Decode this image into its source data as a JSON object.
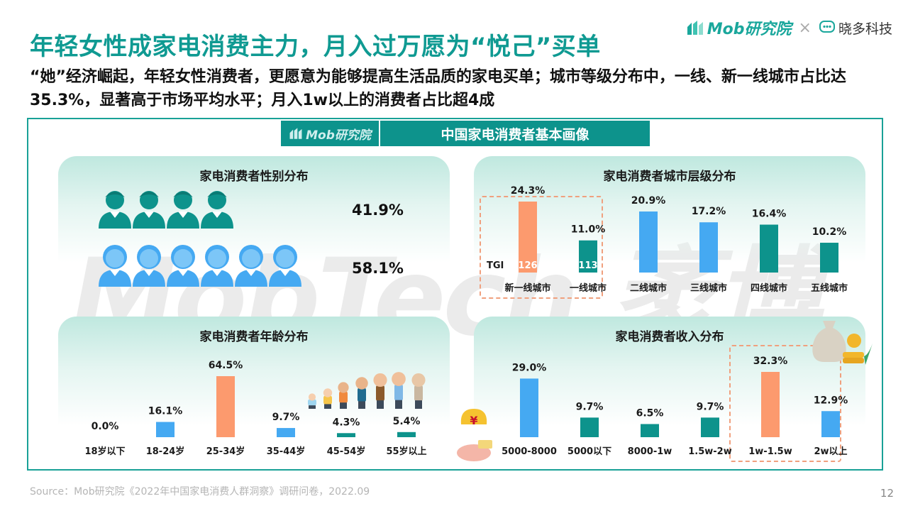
{
  "title": "年轻女性成家电消费主力，月入过万愿为“悦己”买单",
  "subtitle": "“她”经济崛起，年轻女性消费者，更愿意为能够提高生活品质的家电买单；城市等级分布中，一线、新一线城市占比达35.3%，显著高于市场平均水平；月入1w以上的消费者占比超4成",
  "logos": {
    "mob": "Mob研究院",
    "times": "×",
    "xd": "晓多科技"
  },
  "panel": {
    "logo": "Mob研究院",
    "title": "中国家电消费者基本画像",
    "watermark": "MobTech 袤博"
  },
  "colors": {
    "teal": "#0d938c",
    "blue": "#45a9f2",
    "orange": "#fc9a6e",
    "title": "#0f9a92"
  },
  "cards": {
    "gender": {
      "title": "家电消费者性别分布"
    },
    "city": {
      "title": "家电消费者城市层级分布"
    },
    "age": {
      "title": "家电消费者年龄分布"
    },
    "income": {
      "title": "家电消费者收入分布"
    }
  },
  "chart_data": [
    {
      "type": "pictograph",
      "title": "家电消费者性别分布",
      "series": [
        {
          "label": "41.9%",
          "value": 41.9,
          "color": "#0d938c",
          "icon": "male-person-icon",
          "icons_shown": 4
        },
        {
          "label": "58.1%",
          "value": 58.1,
          "color": "#45a9f2",
          "icon": "female-person-icon",
          "icons_shown": 6
        }
      ]
    },
    {
      "type": "bar",
      "title": "家电消费者城市层级分布",
      "categories": [
        "新一线城市",
        "一线城市",
        "二线城市",
        "三线城市",
        "四线城市",
        "五线城市"
      ],
      "values": [
        24.3,
        11.0,
        20.9,
        17.2,
        16.4,
        10.2
      ],
      "labels": [
        "24.3%",
        "11.0%",
        "20.9%",
        "17.2%",
        "16.4%",
        "10.2%"
      ],
      "colors": [
        "#fc9a6e",
        "#0d938c",
        "#45a9f2",
        "#45a9f2",
        "#0d938c",
        "#0d938c"
      ],
      "tgi_label": "TGI",
      "tgi": [
        "126",
        "113"
      ],
      "highlight": [
        0,
        1
      ]
    },
    {
      "type": "bar",
      "title": "家电消费者年龄分布",
      "categories": [
        "18岁以下",
        "18-24岁",
        "25-34岁",
        "35-44岁",
        "45-54岁",
        "55岁以上"
      ],
      "values": [
        0.0,
        16.1,
        64.5,
        9.7,
        4.3,
        5.4
      ],
      "labels": [
        "0.0%",
        "16.1%",
        "64.5%",
        "9.7%",
        "4.3%",
        "5.4%"
      ],
      "colors": [
        "#45a9f2",
        "#45a9f2",
        "#fc9a6e",
        "#45a9f2",
        "#0d938c",
        "#0d938c"
      ]
    },
    {
      "type": "bar",
      "title": "家电消费者收入分布",
      "categories": [
        "5000-8000",
        "5000以下",
        "8000-1w",
        "1.5w-2w",
        "1w-1.5w",
        "2w以上"
      ],
      "values": [
        29.0,
        9.7,
        6.5,
        9.7,
        32.3,
        12.9
      ],
      "labels": [
        "29.0%",
        "9.7%",
        "6.5%",
        "9.7%",
        "32.3%",
        "12.9%"
      ],
      "colors": [
        "#45a9f2",
        "#0d938c",
        "#0d938c",
        "#0d938c",
        "#fc9a6e",
        "#45a9f2"
      ],
      "highlight": [
        4,
        5
      ]
    }
  ],
  "footer": "Source：Mob研究院《2022年中国家电消费人群洞察》调研问卷，2022.09",
  "page_number": "12"
}
